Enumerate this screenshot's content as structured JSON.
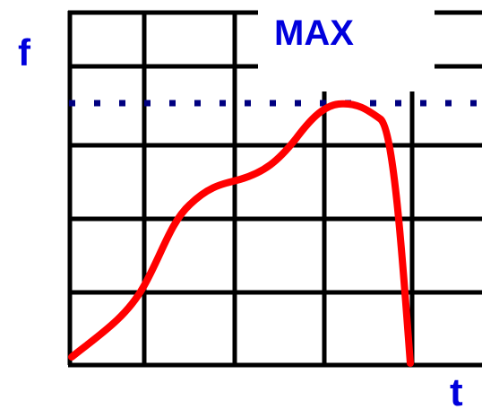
{
  "labels": {
    "y_axis": "f",
    "x_axis": "t",
    "max": "MAX"
  },
  "colors": {
    "grid": "#000000",
    "curve": "#ff0000",
    "label": "#0000dd",
    "max_line": "#000080",
    "background": "#ffffff"
  }
}
